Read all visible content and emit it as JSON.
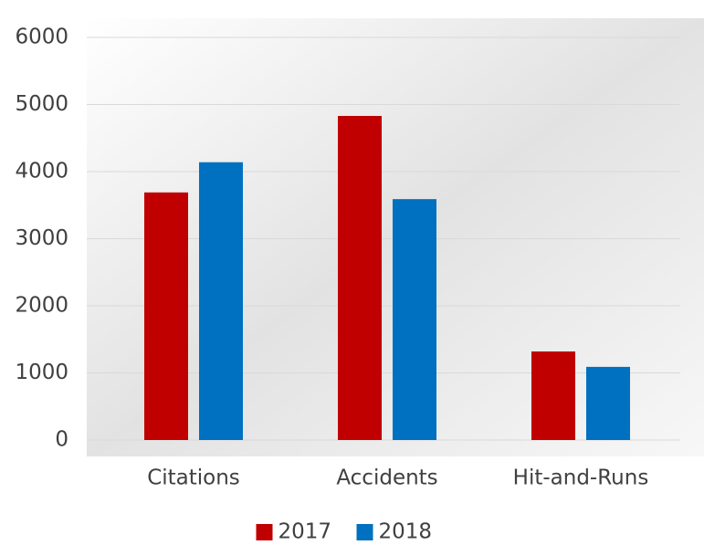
{
  "chart_data": {
    "type": "bar",
    "categories": [
      "Citations",
      "Accidents",
      "Hit-and-Runs"
    ],
    "series": [
      {
        "name": "2017",
        "color": "#c00000",
        "values": [
          3690,
          4830,
          1320
        ]
      },
      {
        "name": "2018",
        "color": "#0070c0",
        "values": [
          4140,
          3590,
          1090
        ]
      }
    ],
    "ylim": [
      0,
      6000
    ],
    "yticks": [
      0,
      1000,
      2000,
      3000,
      4000,
      5000,
      6000
    ],
    "grid": true,
    "legend": "bottom"
  }
}
